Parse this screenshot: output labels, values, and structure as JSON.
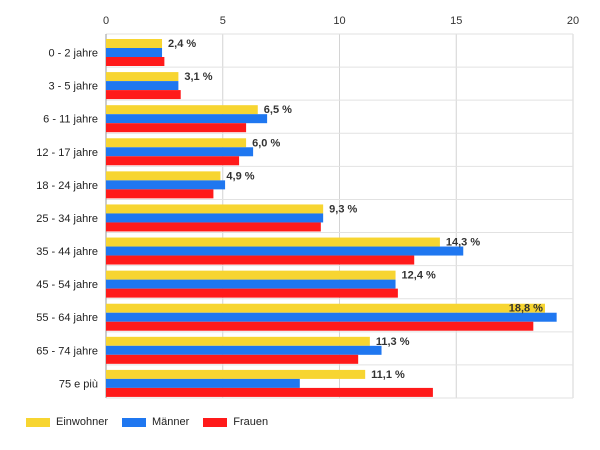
{
  "chart_data": {
    "type": "bar",
    "orientation": "horizontal",
    "categories": [
      "0 - 2 jahre",
      "3 - 5 jahre",
      "6 - 11 jahre",
      "12 - 17 jahre",
      "18 - 24 jahre",
      "25 - 34 jahre",
      "35 - 44 jahre",
      "45 - 54 jahre",
      "55 - 64 jahre",
      "65 - 74 jahre",
      "75 e più"
    ],
    "series": [
      {
        "name": "Einwohner",
        "color": "#f7d531",
        "values": [
          2.4,
          3.1,
          6.5,
          6.0,
          4.9,
          9.3,
          14.3,
          12.4,
          18.8,
          11.3,
          11.1
        ]
      },
      {
        "name": "Männer",
        "color": "#1f77f0",
        "values": [
          2.4,
          3.1,
          6.9,
          6.3,
          5.1,
          9.3,
          15.3,
          12.4,
          19.3,
          11.8,
          8.3
        ]
      },
      {
        "name": "Frauen",
        "color": "#ff1a1a",
        "values": [
          2.5,
          3.2,
          6.0,
          5.7,
          4.6,
          9.2,
          13.2,
          12.5,
          18.3,
          10.8,
          14.0
        ]
      }
    ],
    "data_labels": [
      "2,4 %",
      "3,1 %",
      "6,5 %",
      "6,0 %",
      "4,9 %",
      "9,3 %",
      "14,3 %",
      "12,4 %",
      "18,8 %",
      "11,3 %",
      "11,1 %"
    ],
    "x_ticks": [
      "0",
      "5",
      "10",
      "15",
      "20"
    ],
    "xlim": [
      0,
      20
    ],
    "title": "",
    "xlabel": "",
    "ylabel": "",
    "grid": true,
    "legend_position": "bottom-left"
  }
}
